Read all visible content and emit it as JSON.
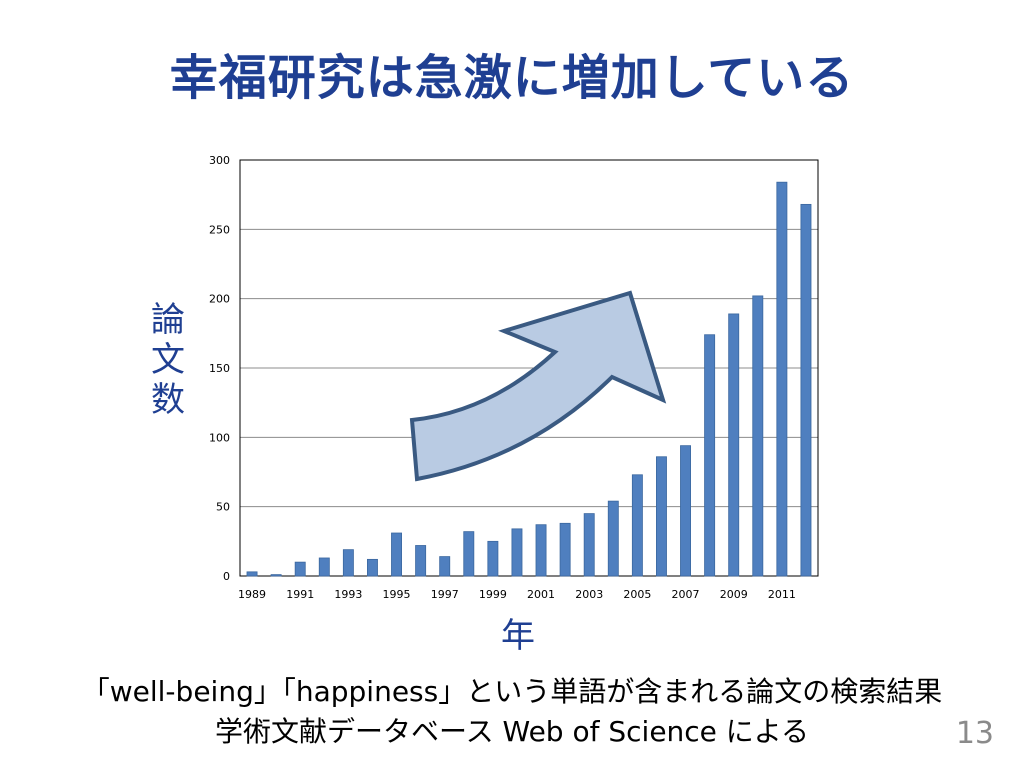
{
  "slide": {
    "title": "幸福研究は急激に増加している",
    "y_axis_label": "論文数",
    "x_axis_label": "年",
    "caption_line1": "「well-being」「happiness」という単語が含まれる論文の検索結果",
    "caption_line2": "学術文献データベース Web of Science による",
    "page_number": "13"
  },
  "colors": {
    "title": "#1f3f92",
    "bar": "#4f7fbf",
    "bar_edge": "#3b679f",
    "arrow_fill": "#b9cbe3",
    "arrow_stroke": "#3a5a82"
  },
  "chart_data": {
    "type": "bar",
    "title": "",
    "xlabel": "年",
    "ylabel": "論文数",
    "ylim": [
      0,
      300
    ],
    "yticks": [
      0,
      50,
      100,
      150,
      200,
      250,
      300
    ],
    "grid": true,
    "categories": [
      "1989",
      "1990",
      "1991",
      "1992",
      "1993",
      "1994",
      "1995",
      "1996",
      "1997",
      "1998",
      "1999",
      "2000",
      "2001",
      "2002",
      "2003",
      "2004",
      "2005",
      "2006",
      "2007",
      "2008",
      "2009",
      "2010",
      "2011",
      "2012"
    ],
    "tick_labels": [
      "1989",
      "",
      "1991",
      "",
      "1993",
      "",
      "1995",
      "",
      "1997",
      "",
      "1999",
      "",
      "2001",
      "",
      "2003",
      "",
      "2005",
      "",
      "2007",
      "",
      "2009",
      "",
      "2011",
      ""
    ],
    "values": [
      3,
      1,
      10,
      13,
      19,
      12,
      31,
      22,
      14,
      32,
      25,
      34,
      37,
      38,
      45,
      54,
      73,
      86,
      94,
      174,
      189,
      202,
      284,
      268
    ]
  }
}
